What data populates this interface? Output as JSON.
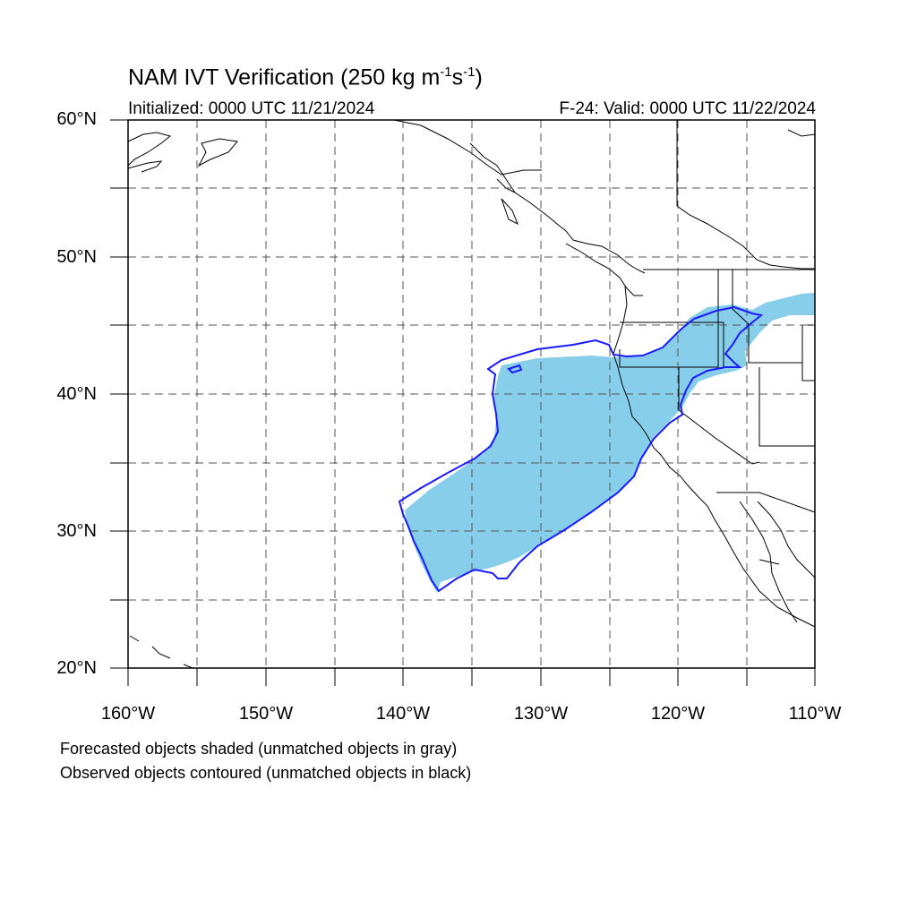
{
  "title_main": "NAM IVT Verification (250 kg m",
  "title_exp1": "-1",
  "title_mid": "s",
  "title_exp2": "-1",
  "title_end": ")",
  "initialized": "Initialized: 0000 UTC 11/21/2024",
  "valid": "F-24: Valid: 0000 UTC 11/22/2024",
  "lat_labels": [
    "60°N",
    "50°N",
    "40°N",
    "30°N",
    "20°N"
  ],
  "lon_labels": [
    "160°W",
    "150°W",
    "140°W",
    "130°W",
    "120°W",
    "110°W"
  ],
  "legend_forecast": "Forecasted objects shaded (unmatched objects in gray)",
  "legend_observed": "Observed objects contoured (unmatched objects in black)",
  "colors": {
    "forecast_fill": "#87ceeb",
    "observed_contour": "#1a1aff",
    "grid": "#555555",
    "coast": "#000000"
  },
  "map_extent": {
    "lon": [
      -160,
      -110
    ],
    "lat": [
      20,
      60
    ]
  }
}
